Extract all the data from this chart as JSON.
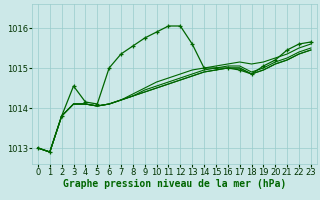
{
  "xlabel": "Graphe pression niveau de la mer (hPa)",
  "background_color": "#cce8e8",
  "plot_bg_color": "#cce8e8",
  "grid_color": "#99cccc",
  "line_color": "#006600",
  "marker_color": "#006600",
  "xlim": [
    -0.5,
    23.5
  ],
  "ylim": [
    1012.6,
    1016.6
  ],
  "yticks": [
    1013,
    1014,
    1015,
    1016
  ],
  "xticks": [
    0,
    1,
    2,
    3,
    4,
    5,
    6,
    7,
    8,
    9,
    10,
    11,
    12,
    13,
    14,
    15,
    16,
    17,
    18,
    19,
    20,
    21,
    22,
    23
  ],
  "series": [
    [
      1013.0,
      1012.9,
      1013.8,
      1014.55,
      1014.15,
      1014.1,
      1015.0,
      1015.35,
      1015.55,
      1015.75,
      1015.9,
      1016.05,
      1016.05,
      1015.6,
      1015.0,
      1015.0,
      1015.0,
      1014.95,
      1014.85,
      1015.05,
      1015.2,
      1015.45,
      1015.6,
      1015.65
    ],
    [
      1013.0,
      1012.9,
      1013.8,
      1014.1,
      1014.1,
      1014.05,
      1014.1,
      1014.2,
      1014.35,
      1014.5,
      1014.65,
      1014.75,
      1014.85,
      1014.95,
      1015.0,
      1015.05,
      1015.1,
      1015.15,
      1015.1,
      1015.15,
      1015.25,
      1015.35,
      1015.5,
      1015.6
    ],
    [
      1013.0,
      1012.9,
      1013.8,
      1014.1,
      1014.1,
      1014.05,
      1014.1,
      1014.2,
      1014.3,
      1014.45,
      1014.55,
      1014.65,
      1014.75,
      1014.85,
      1014.95,
      1015.0,
      1015.05,
      1015.05,
      1014.9,
      1015.0,
      1015.15,
      1015.25,
      1015.4,
      1015.5
    ],
    [
      1013.0,
      1012.9,
      1013.8,
      1014.1,
      1014.1,
      1014.05,
      1014.1,
      1014.2,
      1014.3,
      1014.4,
      1014.5,
      1014.6,
      1014.7,
      1014.8,
      1014.9,
      1014.95,
      1015.0,
      1015.0,
      1014.85,
      1014.95,
      1015.1,
      1015.2,
      1015.35,
      1015.45
    ],
    [
      1013.0,
      1012.9,
      1013.8,
      1014.1,
      1014.1,
      1014.05,
      1014.1,
      1014.2,
      1014.3,
      1014.4,
      1014.5,
      1014.6,
      1014.7,
      1014.8,
      1014.9,
      1014.95,
      1015.0,
      1015.0,
      1014.85,
      1014.95,
      1015.1,
      1015.2,
      1015.35,
      1015.45
    ]
  ],
  "has_markers": [
    true,
    false,
    false,
    false,
    false
  ],
  "xlabel_fontsize": 7,
  "tick_fontsize": 6
}
